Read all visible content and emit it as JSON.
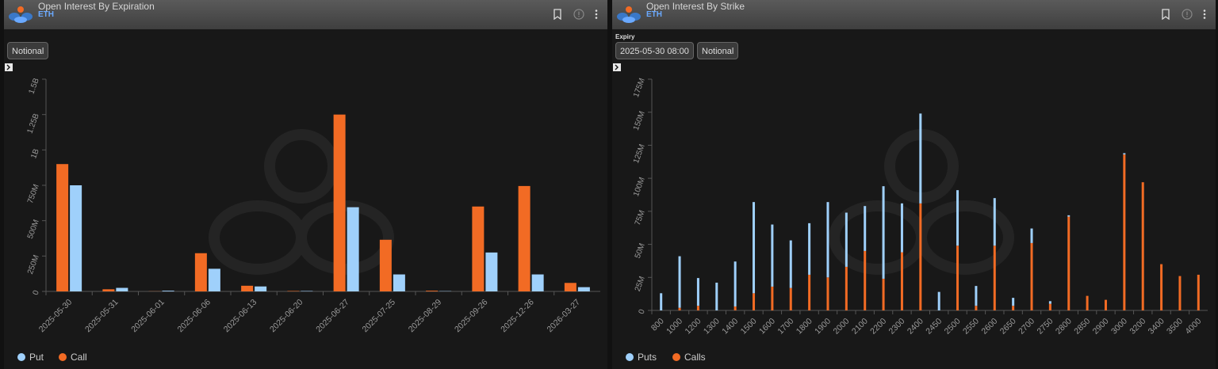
{
  "colors": {
    "put": "#9fd0fb",
    "call": "#f26b24",
    "axis": "#555",
    "text": "#9a9a9a"
  },
  "left": {
    "title": "Open Interest By Expiration",
    "subtitle": "ETH",
    "mode_button": "Notional",
    "legend": {
      "put": "Put",
      "call": "Call"
    },
    "chart_data": {
      "type": "bar",
      "categories": [
        "2025-05-30",
        "2025-05-31",
        "2025-06-01",
        "2025-06-06",
        "2025-06-13",
        "2025-06-20",
        "2025-06-27",
        "2025-07-25",
        "2025-08-29",
        "2025-09-26",
        "2025-12-26",
        "2026-03-27"
      ],
      "series": [
        {
          "name": "Call",
          "values": [
            900000000,
            15000000,
            1000000,
            270000000,
            40000000,
            3000000,
            1250000000,
            365000000,
            5000000,
            600000000,
            745000000,
            60000000
          ]
        },
        {
          "name": "Put",
          "values": [
            750000000,
            25000000,
            5000000,
            160000000,
            35000000,
            3000000,
            595000000,
            120000000,
            2000000,
            275000000,
            120000000,
            30000000
          ]
        }
      ],
      "yticks": [
        0,
        250000000,
        500000000,
        750000000,
        1000000000,
        1250000000,
        1500000000
      ],
      "ytick_labels": [
        "0",
        "250M",
        "500M",
        "750M",
        "1B",
        "1.25B",
        "1.5B"
      ],
      "ylim": [
        0,
        1500000000
      ],
      "legend_position": "bottom-left"
    }
  },
  "right": {
    "title": "Open Interest By Strike",
    "subtitle": "ETH",
    "expiry_label": "Expiry",
    "expiry_button": "2025-05-30 08:00",
    "mode_button": "Notional",
    "legend": {
      "put": "Puts",
      "call": "Calls"
    },
    "chart_data": {
      "type": "bar",
      "stacked": true,
      "categories": [
        "800",
        "1000",
        "1200",
        "1300",
        "1400",
        "1500",
        "1600",
        "1700",
        "1800",
        "1900",
        "2000",
        "2100",
        "2200",
        "2300",
        "2400",
        "2450",
        "2500",
        "2550",
        "2600",
        "2650",
        "2700",
        "2750",
        "2800",
        "2850",
        "2900",
        "3000",
        "3200",
        "3400",
        "3500",
        "4000"
      ],
      "series": [
        {
          "name": "Calls",
          "values": [
            0,
            2000000,
            3500000,
            0,
            3000000,
            13000000,
            18000000,
            17000000,
            27000000,
            25000000,
            33000000,
            45000000,
            24000000,
            44000000,
            81000000,
            0,
            49000000,
            3500000,
            49000000,
            3500000,
            51000000,
            5000000,
            71000000,
            11000000,
            8000000,
            118000000,
            97000000,
            35000000,
            26000000,
            27000000
          ]
        },
        {
          "name": "Puts",
          "values": [
            13000000,
            39000000,
            21000000,
            21000000,
            34000000,
            69000000,
            47000000,
            36000000,
            39000000,
            57000000,
            41000000,
            34000000,
            70000000,
            37000000,
            68000000,
            14000000,
            42000000,
            15000000,
            36000000,
            6000000,
            11000000,
            2000000,
            1000000,
            0,
            0,
            1000000,
            0,
            0,
            0,
            0
          ]
        }
      ],
      "yticks": [
        0,
        25000000,
        50000000,
        75000000,
        100000000,
        125000000,
        150000000,
        175000000
      ],
      "ytick_labels": [
        "0",
        "25M",
        "50M",
        "75M",
        "100M",
        "125M",
        "150M",
        "175M"
      ],
      "ylim": [
        0,
        175000000
      ],
      "legend_position": "bottom-left"
    }
  }
}
